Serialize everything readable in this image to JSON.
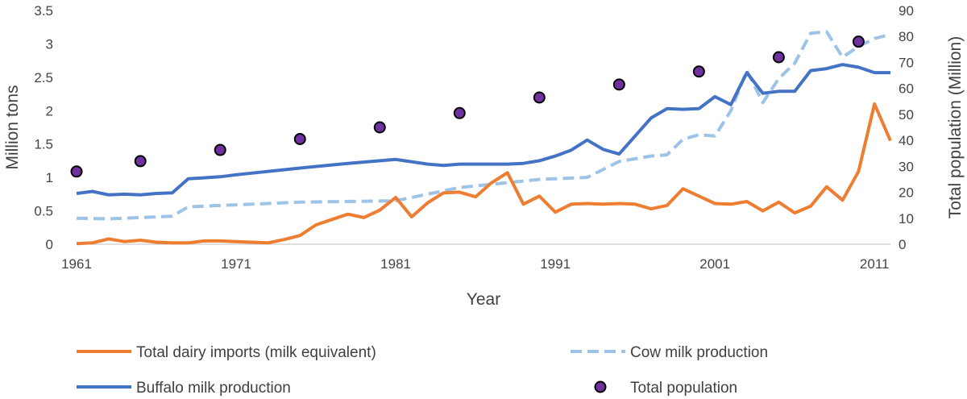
{
  "chart_data": {
    "type": "line",
    "title": "",
    "xlabel": "Year",
    "ylabel": "Million tons",
    "y2label": "Total population (Million)",
    "xlim": [
      1961,
      2012
    ],
    "ylim": [
      0,
      3.5
    ],
    "y2lim": [
      0,
      90
    ],
    "x_ticks": [
      1961,
      1971,
      1981,
      1991,
      2001,
      2011
    ],
    "y_ticks": [
      "0",
      "0.5",
      "1",
      "1.5",
      "2",
      "2.5",
      "3",
      "3.5"
    ],
    "y2_ticks": [
      "0",
      "10",
      "20",
      "30",
      "40",
      "50",
      "60",
      "70",
      "80",
      "90"
    ],
    "legend_position": "bottom",
    "series": [
      {
        "name": "Total dairy imports (milk equivalent)",
        "axis": "left",
        "style": "solid",
        "color": "#ED7D31",
        "x": [
          1961,
          1962,
          1963,
          1964,
          1965,
          1966,
          1967,
          1968,
          1969,
          1970,
          1971,
          1972,
          1973,
          1974,
          1975,
          1976,
          1977,
          1978,
          1979,
          1980,
          1981,
          1982,
          1983,
          1984,
          1985,
          1986,
          1987,
          1988,
          1989,
          1990,
          1991,
          1992,
          1993,
          1994,
          1995,
          1996,
          1997,
          1998,
          1999,
          2000,
          2001,
          2002,
          2003,
          2004,
          2005,
          2006,
          2007,
          2008,
          2009,
          2010,
          2011,
          2012
        ],
        "values": [
          0.01,
          0.02,
          0.08,
          0.04,
          0.06,
          0.03,
          0.02,
          0.02,
          0.05,
          0.05,
          0.04,
          0.03,
          0.02,
          0.07,
          0.13,
          0.29,
          0.37,
          0.45,
          0.4,
          0.51,
          0.7,
          0.41,
          0.62,
          0.77,
          0.78,
          0.71,
          0.92,
          1.07,
          0.6,
          0.72,
          0.48,
          0.6,
          0.61,
          0.6,
          0.61,
          0.6,
          0.53,
          0.58,
          0.83,
          0.72,
          0.61,
          0.6,
          0.64,
          0.5,
          0.63,
          0.47,
          0.57,
          0.86,
          0.66,
          1.09,
          2.1,
          1.55
        ]
      },
      {
        "name": "Cow milk production",
        "axis": "left",
        "style": "dashed",
        "color": "#9DC3E6",
        "x": [
          1961,
          1963,
          1965,
          1967,
          1968,
          1971,
          1975,
          1981,
          1985,
          1990,
          1993,
          1995,
          1997,
          1998,
          1999,
          2000,
          2001,
          2002,
          2003,
          2004,
          2005,
          2006,
          2007,
          2008,
          2009,
          2010,
          2011,
          2012
        ],
        "values": [
          0.39,
          0.38,
          0.4,
          0.42,
          0.56,
          0.59,
          0.63,
          0.65,
          0.85,
          0.97,
          1.0,
          1.24,
          1.32,
          1.34,
          1.57,
          1.64,
          1.62,
          2.0,
          2.6,
          2.12,
          2.48,
          2.71,
          3.16,
          3.18,
          2.8,
          2.96,
          3.08,
          3.14
        ]
      },
      {
        "name": "Buffalo milk production",
        "axis": "left",
        "style": "solid",
        "color": "#4472C4",
        "x": [
          1961,
          1962,
          1963,
          1964,
          1965,
          1966,
          1967,
          1968,
          1970,
          1971,
          1975,
          1978,
          1981,
          1983,
          1984,
          1985,
          1986,
          1987,
          1988,
          1989,
          1990,
          1991,
          1992,
          1993,
          1994,
          1995,
          1996,
          1997,
          1998,
          1999,
          2000,
          2001,
          2002,
          2003,
          2004,
          2005,
          2006,
          2007,
          2008,
          2009,
          2010,
          2011,
          2012
        ],
        "values": [
          0.76,
          0.79,
          0.74,
          0.75,
          0.74,
          0.76,
          0.77,
          0.98,
          1.01,
          1.04,
          1.14,
          1.21,
          1.27,
          1.2,
          1.18,
          1.2,
          1.2,
          1.2,
          1.2,
          1.21,
          1.25,
          1.32,
          1.41,
          1.56,
          1.42,
          1.35,
          1.62,
          1.89,
          2.03,
          2.02,
          2.03,
          2.21,
          2.09,
          2.57,
          2.26,
          2.29,
          2.29,
          2.6,
          2.63,
          2.69,
          2.65,
          2.57,
          2.57
        ]
      },
      {
        "name": "Total population",
        "axis": "right",
        "style": "markers",
        "color": "#7030A0",
        "x": [
          1961,
          1965,
          1970,
          1975,
          1980,
          1985,
          1990,
          1995,
          2000,
          2005,
          2010
        ],
        "values": [
          28,
          32,
          36.3,
          40.5,
          45,
          50.5,
          56.5,
          61.5,
          66.5,
          72,
          78
        ]
      }
    ]
  }
}
